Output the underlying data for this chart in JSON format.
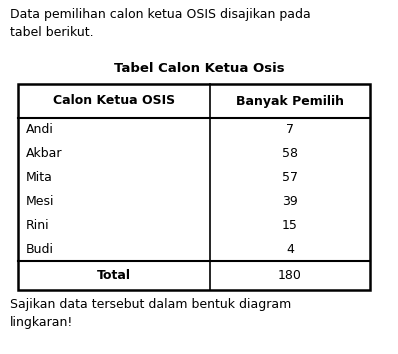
{
  "intro_text": "Data pemilihan calon ketua OSIS disajikan pada\ntabel berikut.",
  "table_title": "Tabel Calon Ketua Osis",
  "col_header_1": "Calon Ketua OSIS",
  "col_header_2": "Banyak Pemilih",
  "candidates": [
    "Andi",
    "Akbar",
    "Mita",
    "Mesi",
    "Rini",
    "Budi"
  ],
  "votes": [
    7,
    58,
    57,
    39,
    15,
    4
  ],
  "total_label": "Total",
  "total_value": 180,
  "footer_text": "Sajikan data tersebut dalam bentuk diagram\nlingkaran!",
  "bg_color": "#ffffff",
  "text_color": "#000000"
}
